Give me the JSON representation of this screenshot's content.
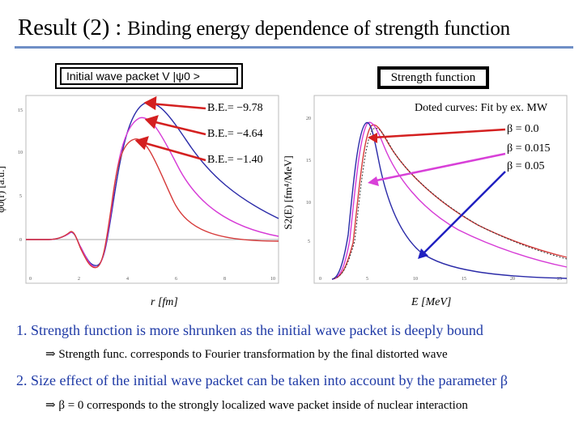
{
  "title": {
    "main": "Result (2) : ",
    "rest": "Binding energy dependence of strength function"
  },
  "legend": {
    "wave_packet_label": "Initial wave packet  V |ψ0 >",
    "strength_function_label": "Strength function"
  },
  "left_plot": {
    "ylabel": "φ0(r) [a.u.]",
    "xlabel": "r [fm]",
    "annotations": [
      "B.E.= −9.78",
      "B.E.= −4.64",
      "B.E.= −1.40"
    ]
  },
  "right_plot": {
    "ylabel": "S2(E) [fm⁴/MeV]",
    "xlabel": "E [MeV]",
    "note": "Doted curves: Fit by ex. MW",
    "beta_labels": [
      "β = 0.0",
      "β = 0.015",
      "β = 0.05"
    ]
  },
  "colors": {
    "blue": "#2a2aa8",
    "magenta": "#d63ad6",
    "red": "#d63a3a",
    "arrow": "#d42020",
    "arrow_magenta": "#d840d8"
  },
  "bullets": {
    "b1": "1. Strength function is more shrunken as the initial wave packet is deeply bound",
    "b1_sub": "⇒ Strength func. corresponds to Fourier transformation by the final distorted wave",
    "b2": "2. Size effect of the initial wave packet can be taken into account by the parameter β",
    "b2_sub": "⇒ β = 0 corresponds to the strongly localized wave packet inside of nuclear interaction"
  }
}
